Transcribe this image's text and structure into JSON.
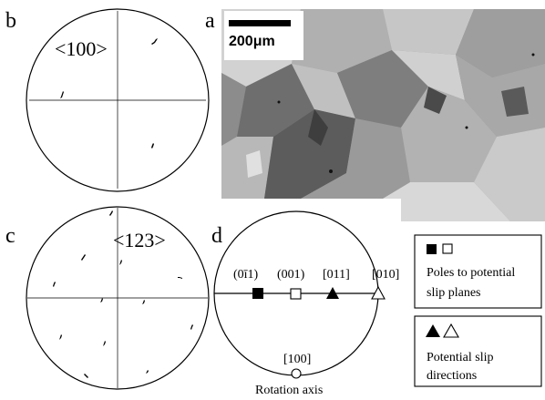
{
  "figure": {
    "panels": {
      "a": {
        "letter": "a",
        "scale_bar_label": "200μm"
      },
      "b": {
        "letter": "b",
        "pole_label": "<100>"
      },
      "c": {
        "letter": "c",
        "pole_label": "<123>"
      },
      "d": {
        "letter": "d",
        "plane_labels": [
          "(0ī1)",
          "(001)",
          "[011]",
          "[010]"
        ],
        "bottom_label": "[100]",
        "rotation_label": "Rotation axis"
      }
    },
    "legend": {
      "planes": {
        "symbols": "■ □",
        "line1": "Poles to potential",
        "line2": "slip planes"
      },
      "directions": {
        "symbols": "▲△",
        "line1": "Potential slip",
        "line2": "directions"
      }
    },
    "colors": {
      "ink": "#000000",
      "micrograph_light": "#c8c8c8",
      "micrograph_dark": "#3a3a3a"
    }
  }
}
